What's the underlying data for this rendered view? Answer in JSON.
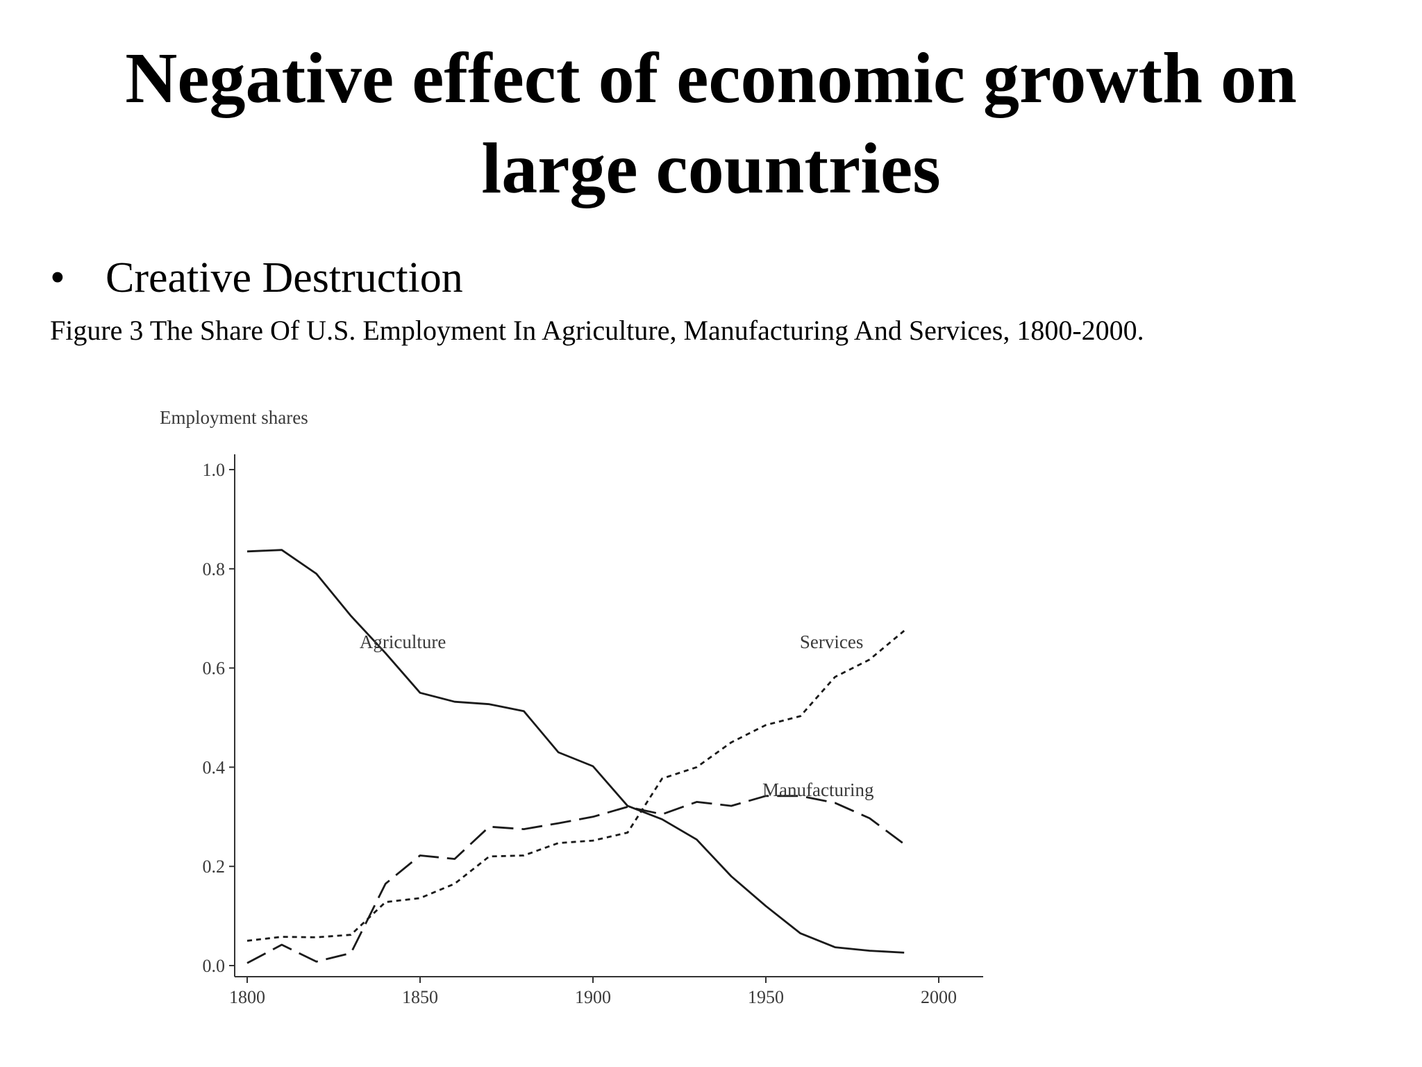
{
  "slide": {
    "title_line1": "Negative effect of economic growth on",
    "title_line2": "large countries",
    "bullet": "Creative Destruction",
    "bullet_symbol": "•",
    "caption": "Figure 3 The Share Of U.S. Employment In Agriculture, Manufacturing And Services, 1800-2000."
  },
  "chart_data": {
    "type": "line",
    "title": "",
    "ylabel": "Employment shares",
    "xlabel": "",
    "xlim": [
      1800,
      2000
    ],
    "ylim": [
      0.0,
      1.0
    ],
    "xticks": [
      "1800",
      "1850",
      "1900",
      "1950",
      "2000"
    ],
    "yticks": [
      "0.0",
      "0.2",
      "0.4",
      "0.6",
      "0.8",
      "1.0"
    ],
    "grid": false,
    "legend": "inline labels",
    "series": [
      {
        "name": "Agriculture",
        "style": "solid",
        "x": [
          1800,
          1810,
          1820,
          1830,
          1840,
          1850,
          1860,
          1870,
          1880,
          1890,
          1900,
          1910,
          1920,
          1930,
          1940,
          1950,
          1960,
          1970,
          1980,
          1990
        ],
        "y": [
          0.835,
          0.838,
          0.79,
          0.705,
          0.63,
          0.55,
          0.532,
          0.527,
          0.513,
          0.43,
          0.402,
          0.322,
          0.295,
          0.254,
          0.18,
          0.12,
          0.065,
          0.037,
          0.03,
          0.026
        ]
      },
      {
        "name": "Manufacturing",
        "style": "long-dash",
        "x": [
          1800,
          1810,
          1820,
          1830,
          1840,
          1850,
          1860,
          1870,
          1880,
          1890,
          1900,
          1910,
          1920,
          1930,
          1940,
          1950,
          1960,
          1970,
          1980,
          1990
        ],
        "y": [
          0.005,
          0.042,
          0.008,
          0.025,
          0.165,
          0.222,
          0.215,
          0.28,
          0.275,
          0.287,
          0.3,
          0.32,
          0.305,
          0.33,
          0.322,
          0.342,
          0.342,
          0.328,
          0.297,
          0.245
        ]
      },
      {
        "name": "Services",
        "style": "short-dash",
        "x": [
          1800,
          1810,
          1820,
          1830,
          1840,
          1850,
          1860,
          1870,
          1880,
          1890,
          1900,
          1910,
          1920,
          1930,
          1940,
          1950,
          1960,
          1970,
          1980,
          1990
        ],
        "y": [
          0.05,
          0.058,
          0.057,
          0.062,
          0.128,
          0.136,
          0.165,
          0.22,
          0.222,
          0.247,
          0.252,
          0.268,
          0.377,
          0.4,
          0.45,
          0.485,
          0.503,
          0.582,
          0.617,
          0.675
        ]
      }
    ]
  }
}
